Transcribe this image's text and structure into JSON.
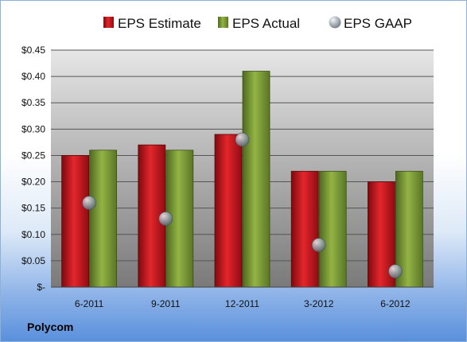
{
  "company": "Polycom",
  "colors": {
    "estimate": "#c8161d",
    "actual": "#7e9e36",
    "gaap": "#9aa3ad",
    "plot_bg_top": "#e6e6e6",
    "plot_bg_bottom": "#7a7a7a"
  },
  "chart_data": {
    "type": "bar",
    "categories": [
      "6-2011",
      "9-2011",
      "12-2011",
      "3-2012",
      "6-2012"
    ],
    "series": [
      {
        "name": "EPS Estimate",
        "kind": "bar",
        "values": [
          0.25,
          0.27,
          0.29,
          0.22,
          0.2
        ]
      },
      {
        "name": "EPS Actual",
        "kind": "bar",
        "values": [
          0.26,
          0.26,
          0.41,
          0.22,
          0.22
        ]
      },
      {
        "name": "EPS GAAP",
        "kind": "scatter",
        "values": [
          0.16,
          0.13,
          0.28,
          0.08,
          0.03
        ]
      }
    ],
    "yticks": [
      "$-",
      "$0.05",
      "$0.10",
      "$0.15",
      "$0.20",
      "$0.25",
      "$0.30",
      "$0.35",
      "$0.40",
      "$0.45"
    ],
    "ylim": [
      0,
      0.45
    ],
    "grid": true,
    "legend_position": "top"
  }
}
